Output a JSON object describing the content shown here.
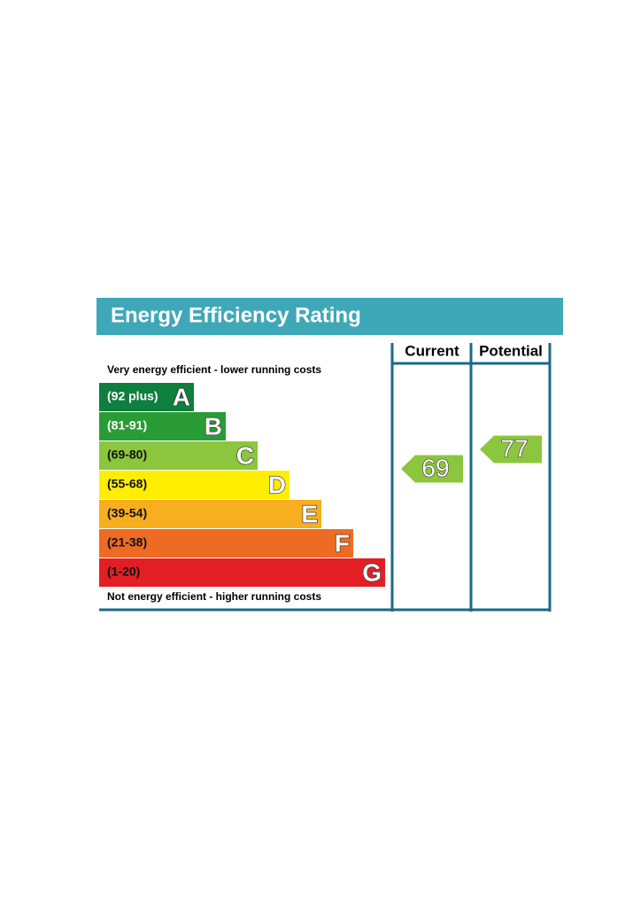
{
  "chart_data": {
    "type": "epc",
    "title": "Energy Efficiency Rating",
    "top_note": "Very energy efficient - lower running costs",
    "bottom_note": "Not energy efficient - higher running costs",
    "columns": [
      "Current",
      "Potential"
    ],
    "bands": [
      {
        "range": "(92 plus)",
        "letter": "A",
        "color": "#0f7f3e",
        "text_color": "#ffffff"
      },
      {
        "range": "(81-91)",
        "letter": "B",
        "color": "#2a9c35",
        "text_color": "#ffffff"
      },
      {
        "range": "(69-80)",
        "letter": "C",
        "color": "#8cc63e",
        "text_color": "#111111"
      },
      {
        "range": "(55-68)",
        "letter": "D",
        "color": "#ffee00",
        "text_color": "#111111"
      },
      {
        "range": "(39-54)",
        "letter": "E",
        "color": "#f7ae1f",
        "text_color": "#111111"
      },
      {
        "range": "(21-38)",
        "letter": "F",
        "color": "#ee6b24",
        "text_color": "#111111"
      },
      {
        "range": "(1-20)",
        "letter": "G",
        "color": "#e31e25",
        "text_color": "#111111"
      }
    ],
    "series": [
      {
        "name": "Current",
        "values": [
          69
        ],
        "color": "#8cc63e"
      },
      {
        "name": "Potential",
        "values": [
          77
        ],
        "color": "#8cc63e"
      }
    ]
  }
}
